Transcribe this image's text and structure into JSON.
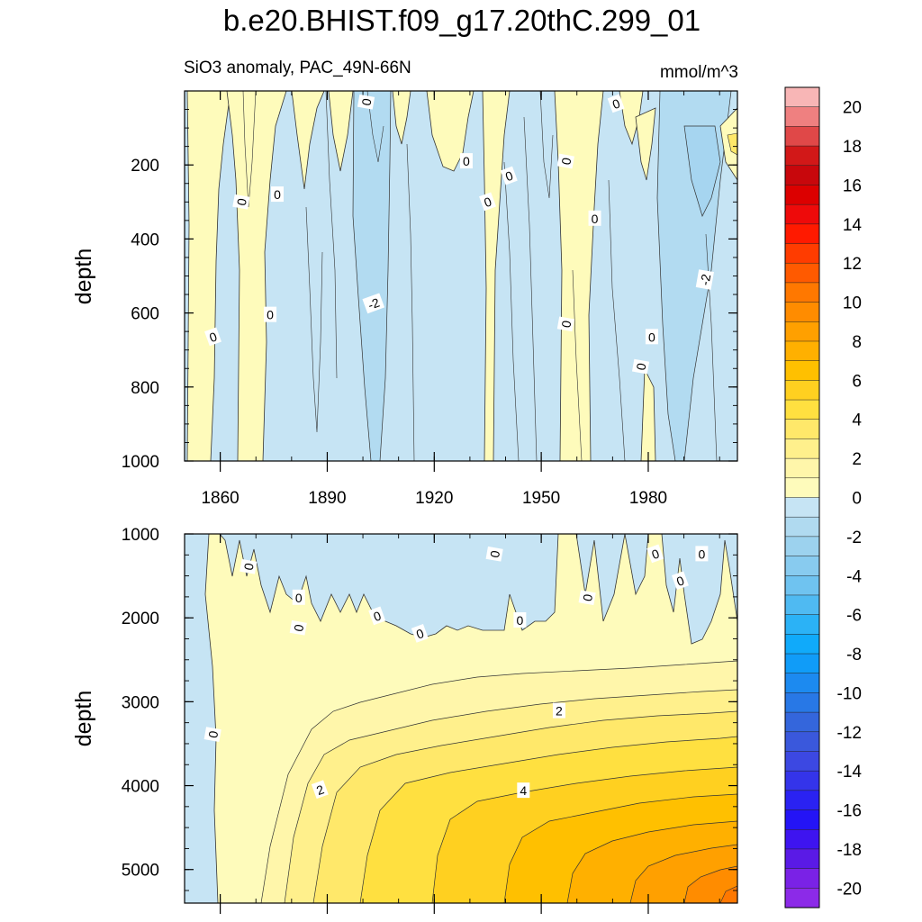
{
  "chart_data": {
    "type": "heatmap",
    "title": "b.e20.BHIST.f09_g17.20thC.299_01",
    "subtitle_left": "SiO3 anomaly, PAC_49N-66N",
    "units": "mmol/m^3",
    "x_ticks": [
      1860,
      1890,
      1920,
      1950,
      1980
    ],
    "xlim": [
      1850,
      2005
    ],
    "panels": [
      {
        "name": "upper-ocean",
        "ylabel": "depth",
        "ylim": [
          0,
          1000
        ],
        "y_ticks": [
          200,
          400,
          600,
          800,
          1000
        ],
        "contour_labels": [
          {
            "text": "0",
            "x": 1901,
            "y": 30
          },
          {
            "text": "0",
            "x": 1971,
            "y": 35
          },
          {
            "text": "0",
            "x": 1929,
            "y": 190
          },
          {
            "text": "0",
            "x": 1957,
            "y": 190
          },
          {
            "text": "0",
            "x": 1941,
            "y": 230
          },
          {
            "text": "0",
            "x": 1876,
            "y": 280
          },
          {
            "text": "0",
            "x": 1866,
            "y": 300
          },
          {
            "text": "0",
            "x": 1935,
            "y": 300
          },
          {
            "text": "0",
            "x": 1965,
            "y": 345
          },
          {
            "text": "-2",
            "x": 1996,
            "y": 510
          },
          {
            "text": "-2",
            "x": 1903,
            "y": 575
          },
          {
            "text": "0",
            "x": 1874,
            "y": 605
          },
          {
            "text": "0",
            "x": 1957,
            "y": 630
          },
          {
            "text": "0",
            "x": 1858,
            "y": 665
          },
          {
            "text": "0",
            "x": 1981,
            "y": 665
          },
          {
            "text": "0",
            "x": 1978,
            "y": 745
          }
        ]
      },
      {
        "name": "deep-ocean",
        "ylabel": "depth",
        "ylim": [
          1000,
          5400
        ],
        "y_ticks": [
          1000,
          2000,
          3000,
          4000,
          5000
        ],
        "contour_labels": [
          {
            "text": "0",
            "x": 1937,
            "y": 1240
          },
          {
            "text": "0",
            "x": 1982,
            "y": 1240
          },
          {
            "text": "0",
            "x": 1995,
            "y": 1240
          },
          {
            "text": "0",
            "x": 1868,
            "y": 1390
          },
          {
            "text": "0",
            "x": 1989,
            "y": 1560
          },
          {
            "text": "0",
            "x": 1882,
            "y": 1760
          },
          {
            "text": "0",
            "x": 1963,
            "y": 1760
          },
          {
            "text": "0",
            "x": 1904,
            "y": 1980
          },
          {
            "text": "0",
            "x": 1944,
            "y": 2030
          },
          {
            "text": "0",
            "x": 1882,
            "y": 2120
          },
          {
            "text": "0",
            "x": 1916,
            "y": 2190
          },
          {
            "text": "2",
            "x": 1955,
            "y": 3110
          },
          {
            "text": "0",
            "x": 1858,
            "y": 3390
          },
          {
            "text": "2",
            "x": 1888,
            "y": 4050
          },
          {
            "text": "4",
            "x": 1945,
            "y": 4060
          }
        ]
      }
    ],
    "colorbar": {
      "labels": [
        "20",
        "18",
        "16",
        "14",
        "12",
        "10",
        "8",
        "6",
        "4",
        "2",
        "0",
        "-2",
        "-4",
        "-6",
        "-8",
        "-10",
        "-12",
        "-14",
        "-16",
        "-18",
        "-20"
      ],
      "colors": [
        "#f8b6b6",
        "#ef8080",
        "#e04848",
        "#d21818",
        "#c8070c",
        "#dc0000",
        "#ee0a0a",
        "#ff1a00",
        "#ff3c00",
        "#ff5a00",
        "#ff7800",
        "#ff8c00",
        "#ffa000",
        "#ffb000",
        "#ffc000",
        "#ffd020",
        "#ffe040",
        "#ffe86a",
        "#fff08c",
        "#fff6aa",
        "#fefbbb",
        "#c6e4f4",
        "#b0daf0",
        "#9cd2ee",
        "#88cbef",
        "#6fc3f0",
        "#4fbaf2",
        "#2bb2f6",
        "#10aafa",
        "#109cf8",
        "#1c8af0",
        "#2878e6",
        "#3466dc",
        "#3a58dc",
        "#3c48e2",
        "#3434ea",
        "#2a22f2",
        "#2414f6",
        "#3e14f0",
        "#5a1ae6",
        "#7a22e6",
        "#8c2ae8"
      ]
    }
  }
}
